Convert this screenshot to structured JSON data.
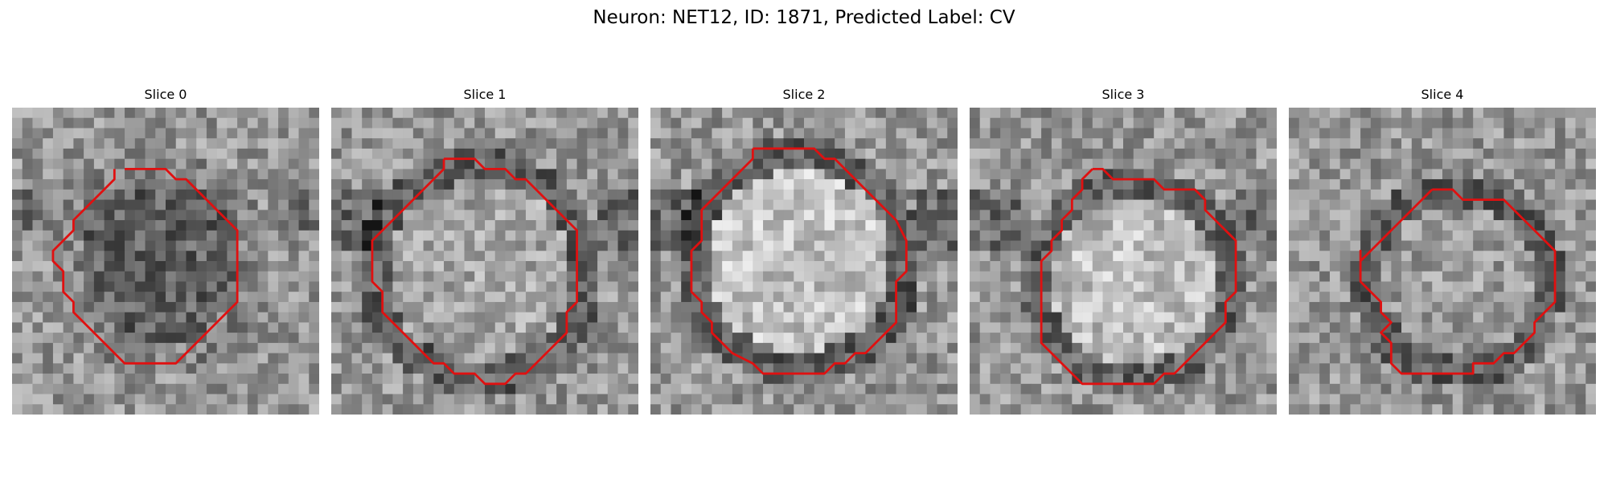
{
  "figure": {
    "title": "Neuron: NET12, ID: 1871, Predicted Label: CV"
  },
  "panels": [
    {
      "title": "Slice 0"
    },
    {
      "title": "Slice 1"
    },
    {
      "title": "Slice 2"
    },
    {
      "title": "Slice 3"
    },
    {
      "title": "Slice 4"
    }
  ],
  "colors": {
    "contour": "#e01010",
    "background": "#ffffff"
  }
}
